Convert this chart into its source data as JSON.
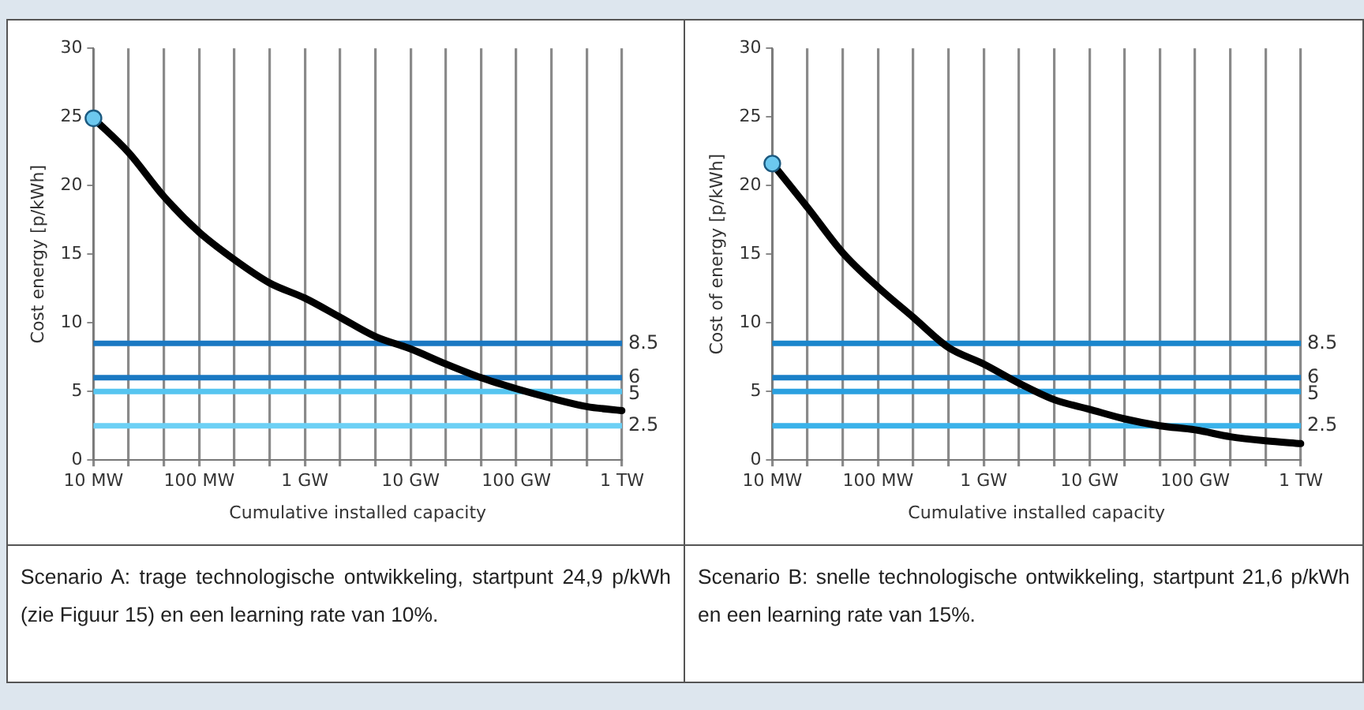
{
  "chart_data": [
    {
      "type": "line",
      "xlabel": "Cumulative installed capacity",
      "ylabel": "Cost energy [p/kWh]",
      "grid": "x",
      "categories": [
        "10 MW",
        null,
        null,
        "100 MW",
        null,
        null,
        "1 GW",
        null,
        null,
        "10 GW",
        null,
        null,
        "100 GW",
        null,
        null,
        "1 TW"
      ],
      "ylim": [
        0,
        30
      ],
      "yticks": [
        0,
        5,
        10,
        15,
        20,
        25,
        30
      ],
      "series": [
        {
          "type": "line",
          "color": "#000000",
          "marker": "none",
          "values": [
            24.9,
            22.4,
            19.2,
            16.6,
            14.6,
            12.9,
            11.8,
            10.4,
            9.0,
            8.1,
            7.0,
            6.0,
            5.2,
            4.5,
            3.9,
            3.6
          ]
        },
        {
          "type": "scatter",
          "color": "#6cc8ef",
          "marker": "circle",
          "values": [
            24.9,
            null,
            null,
            null,
            null,
            null,
            null,
            null,
            null,
            null,
            null,
            null,
            null,
            null,
            null,
            null
          ]
        }
      ],
      "ref_lines": [
        {
          "axis": "y",
          "value": 8.5,
          "label": "8.5",
          "color": "#1a78c2"
        },
        {
          "axis": "y",
          "value": 6,
          "label": "6",
          "color": "#1a78c2"
        },
        {
          "axis": "y",
          "value": 5,
          "label": "5",
          "color": "#56c5f0"
        },
        {
          "axis": "y",
          "value": 2.5,
          "label": "2.5",
          "color": "#6cd0f5"
        }
      ],
      "annotations": [
        "Scenario A: trage technologische ontwikkeling, startpunt 24,9 p/kWh (zie Figuur 15) en een learning rate van 10%."
      ]
    },
    {
      "type": "line",
      "xlabel": "Cumulative installed capacity",
      "ylabel": "Cost of energy [p/kWh]",
      "grid": "x",
      "categories": [
        "10 MW",
        null,
        null,
        "100 MW",
        null,
        null,
        "1 GW",
        null,
        null,
        "10 GW",
        null,
        null,
        "100 GW",
        null,
        null,
        "1 TW"
      ],
      "ylim": [
        0,
        30
      ],
      "yticks": [
        0,
        5,
        10,
        15,
        20,
        25,
        30
      ],
      "series": [
        {
          "type": "line",
          "color": "#000000",
          "marker": "none",
          "values": [
            21.6,
            18.4,
            15.1,
            12.6,
            10.4,
            8.2,
            7.0,
            5.6,
            4.4,
            3.7,
            3.0,
            2.5,
            2.2,
            1.7,
            1.4,
            1.2
          ]
        },
        {
          "type": "scatter",
          "color": "#6cc8ef",
          "marker": "circle",
          "values": [
            21.6,
            null,
            null,
            null,
            null,
            null,
            null,
            null,
            null,
            null,
            null,
            null,
            null,
            null,
            null,
            null
          ]
        }
      ],
      "ref_lines": [
        {
          "axis": "y",
          "value": 8.5,
          "label": "8.5",
          "color": "#1a86cc"
        },
        {
          "axis": "y",
          "value": 6,
          "label": "6",
          "color": "#1a80c8"
        },
        {
          "axis": "y",
          "value": 5,
          "label": "5",
          "color": "#2aa0e0"
        },
        {
          "axis": "y",
          "value": 2.5,
          "label": "2.5",
          "color": "#3ab2ea"
        }
      ],
      "annotations": [
        "Scenario B: snelle technologische ontwikkeling, startpunt 21,6 p/kWh en een learning rate van 15%."
      ]
    }
  ]
}
